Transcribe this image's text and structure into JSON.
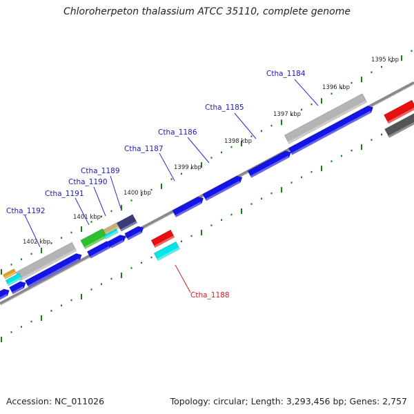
{
  "title": "Chloroherpeton thalassium ATCC 35110, complete genome",
  "footer": {
    "accession": "Accession: NC_011026",
    "summary": "Topology: circular; Length: 3,293,456 bp; Genes: 2,757"
  },
  "colors": {
    "forward_gene": "#1414e6",
    "forward_feature": "#b4b4b4",
    "reverse_gene": "#e61010",
    "reverse_feature": "#00e6e6",
    "backbone": "#8a8a8a",
    "tick": "#1a7a1a",
    "label_forward": "#1a1ab8",
    "label_reverse": "#cc2020",
    "leader_forward": "#2a2ad0",
    "leader_reverse": "#cc2020"
  },
  "kbp_ticks": [
    {
      "label": "1395 kbp"
    },
    {
      "label": "1396 kbp"
    },
    {
      "label": "1397 kbp"
    },
    {
      "label": "1398 kbp"
    },
    {
      "label": "1399 kbp"
    },
    {
      "label": "1400 kbp"
    },
    {
      "label": "1401 kbp"
    },
    {
      "label": "1402 kbp"
    }
  ],
  "gene_labels": [
    {
      "id": "Ctha_1184",
      "strand": "forward"
    },
    {
      "id": "Ctha_1185",
      "strand": "forward"
    },
    {
      "id": "Ctha_1186",
      "strand": "forward"
    },
    {
      "id": "Ctha_1187",
      "strand": "forward"
    },
    {
      "id": "Ctha_1189",
      "strand": "forward"
    },
    {
      "id": "Ctha_1190",
      "strand": "forward"
    },
    {
      "id": "Ctha_1191",
      "strand": "forward"
    },
    {
      "id": "Ctha_1192",
      "strand": "forward"
    },
    {
      "id": "Ctha_1188",
      "strand": "reverse"
    }
  ]
}
